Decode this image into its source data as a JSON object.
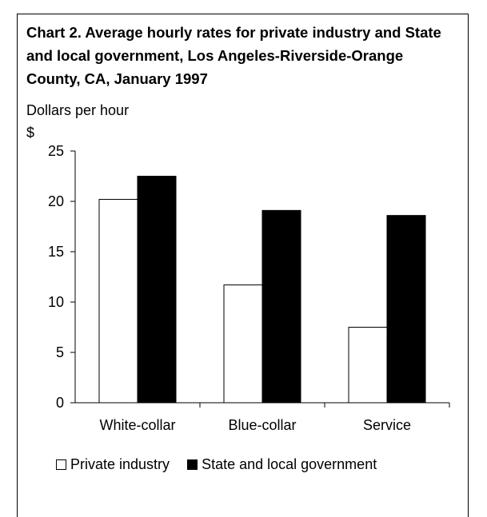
{
  "chart_data": {
    "type": "bar",
    "title": "Chart 2. Average hourly rates for private industry and State and local government, Los Angeles-Riverside-Orange County, CA, January 1997",
    "units_label": "Dollars per hour",
    "ylabel": "$",
    "xlabel": "",
    "categories": [
      "White-collar",
      "Blue-collar",
      "Service"
    ],
    "series": [
      {
        "name": "Private industry",
        "color": "#ffffff",
        "values": [
          20.2,
          11.7,
          7.5
        ]
      },
      {
        "name": "State and local government",
        "color": "#000000",
        "values": [
          22.5,
          19.1,
          18.6
        ]
      }
    ],
    "ylim": [
      0,
      25
    ],
    "yticks": [
      0,
      5,
      10,
      15,
      20,
      25
    ],
    "grid": false,
    "legend_position": "bottom"
  }
}
